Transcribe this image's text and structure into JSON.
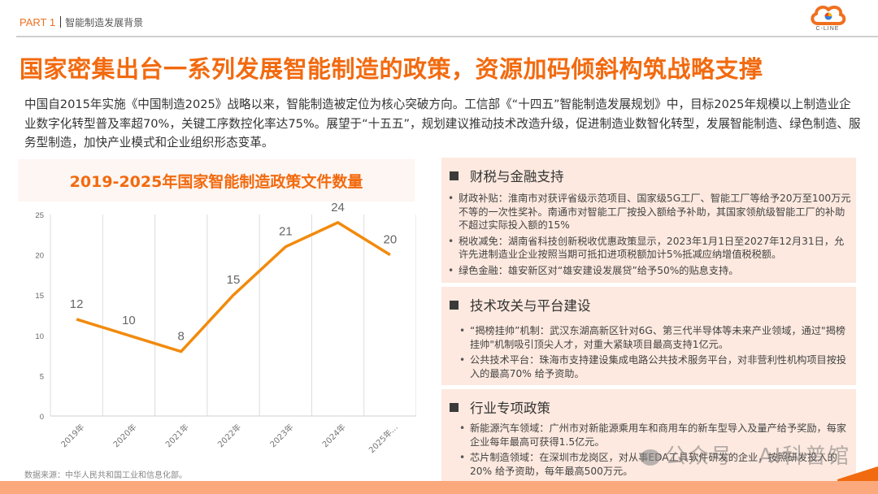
{
  "header": {
    "part_label": "PART 1",
    "section_label": "智能制造发展背景",
    "logo_text": "C-LINE",
    "logo_icon": "cloud-logo-icon"
  },
  "title": "国家密集出台一系列发展智能制造的政策，资源加码倾斜构筑战略支撑",
  "intro": "中国自2015年实施《中国制造2025》战略以来，智能制造被定位为核心突破方向。工信部《“十四五”智能制造发展规划》中，目标2025年规模以上制造业企业数字化转型普及率超70%，关键工序数控化率达75%。展望于“十五五”，规划建议推动技术改造升级，促进制造业数智化转型，发展智能制造、绿色制造、服务型制造，加快产业模式和企业组织形态变革。",
  "chart": {
    "title": "2019-2025年国家智能制造政策文件数量",
    "source": "数据来源：中华人民共和国工业和信息化部。",
    "line_color": "#f28a0c"
  },
  "chart_data": {
    "type": "line",
    "title": "2019-2025年国家智能制造政策文件数量",
    "categories": [
      "2019年",
      "2020年",
      "2021年",
      "2022年",
      "2023年",
      "2024年",
      "2025年…"
    ],
    "values": [
      12,
      10,
      8,
      15,
      21,
      24,
      20
    ],
    "data_labels": [
      "12",
      "10",
      "8",
      "15",
      "21",
      "24",
      "20"
    ],
    "xlabel": "",
    "ylabel": "",
    "ylim": [
      0,
      25
    ],
    "yticks": [
      0,
      5,
      10,
      15,
      20,
      25
    ],
    "grid": "vertical",
    "legend": "none",
    "source": "数据来源：中华人民共和国工业和信息化部。"
  },
  "panels": [
    {
      "heading": "财税与金融支持",
      "items": [
        "财政补贴：淮南市对获评省级示范项目、国家级5G工厂、智能工厂等给予20万至100万元不等的一次性奖补。南通市对智能工厂按投入额给予补助，其国家领航级智能工厂的补助不超过实际投入额的15%",
        "税收减免：湖南省科技创新税收优惠政策显示，2023年1月1日至2027年12月31日，允许先进制造业企业按照当期可抵扣进项税额加计5%抵减应纳增值税税额。",
        "绿色金融：雄安新区对“雄安建设发展贷”给予50%的贴息支持。"
      ]
    },
    {
      "heading": "技术攻关与平台建设",
      "items": [
        "“揭榜挂帅”机制：武汉东湖高新区针对6G、第三代半导体等未来产业领域，通过\"揭榜挂帅\"机制吸引顶尖人才，对重大紧缺项目最高支持1亿元。",
        "公共技术平台：珠海市支持建设集成电路公共技术服务平台，对非营利性机构项目按投入的最高70% 给予资助。"
      ]
    },
    {
      "heading": "行业专项政策",
      "items": [
        "新能源汽车领域：广州市对新能源乘用车和商用车的新车型导入及量产给予奖励，每家企业每年最高可获得1.5亿元。",
        "芯片制造领域：在深圳市龙岗区，对从事EDA工具软件研发的企业，按照研发投入的20% 给予资助，每年最高500万元。"
      ]
    }
  ],
  "watermark": "公众号 · AI科普馆"
}
